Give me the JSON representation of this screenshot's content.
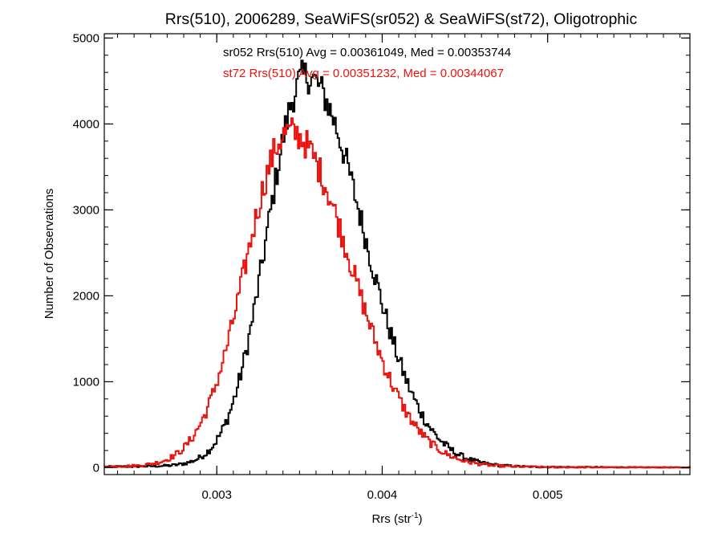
{
  "chart_data": {
    "type": "histogram",
    "title": "Rrs(510), 2006289, SeaWiFS(sr052) & SeaWiFS(st72), Oligotrophic",
    "xlabel_base": "Rrs (str",
    "xlabel_sup": "-1",
    "xlabel_close": ")",
    "ylabel": "Number of Observations",
    "xlim": [
      0.00232,
      0.00586
    ],
    "ylim": [
      -80,
      5050
    ],
    "x_ticks": [
      0.003,
      0.004,
      0.005
    ],
    "x_tick_labels": [
      "0.003",
      "0.004",
      "0.005"
    ],
    "y_ticks": [
      0,
      1000,
      2000,
      3000,
      4000,
      5000
    ],
    "y_tick_labels": [
      "0",
      "1000",
      "2000",
      "3000",
      "4000",
      "5000"
    ],
    "x_minor_step": 0.0001,
    "y_minor_step": 200,
    "bin_width": 1e-05,
    "colors": {
      "sr052": "#000000",
      "st72": "#e8140f",
      "axes": "#000000"
    },
    "series": [
      {
        "key": "sr052",
        "label": "sr052 Rrs(510) Avg = 0.00361049, Med = 0.00353744",
        "color": "#000000",
        "mean": 0.00361049,
        "median": 0.00353744,
        "peak": 4500,
        "sigma_left": 0.00023,
        "sigma_right": 0.00035
      },
      {
        "key": "st72",
        "label": "st72 Rrs(510) Avg = 0.00351232, Med = 0.00344067",
        "color": "#e8140f",
        "mean": 0.00351232,
        "median": 0.00344067,
        "peak": 3850,
        "sigma_left": 0.000265,
        "sigma_right": 0.00037
      }
    ]
  }
}
